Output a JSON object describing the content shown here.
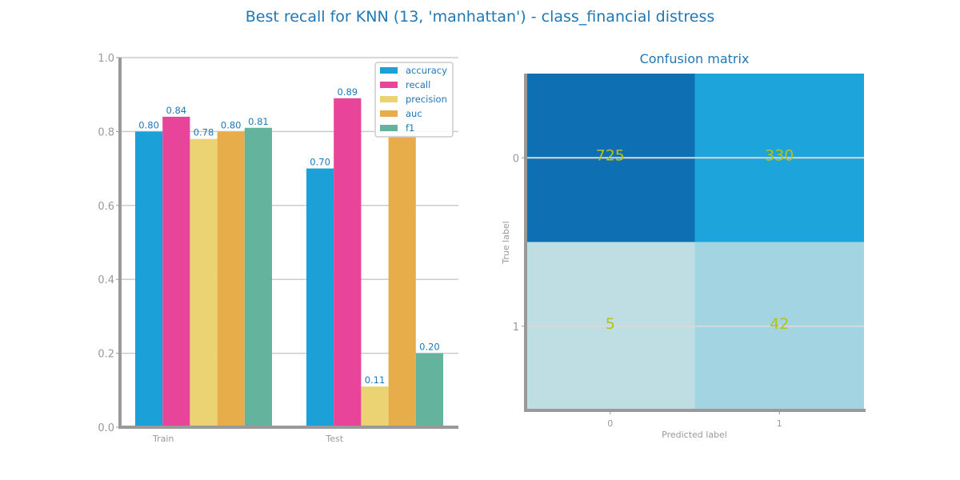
{
  "title": "Best recall for KNN (13, 'manhattan') - class_financial distress",
  "colors": {
    "accuracy": "#1ba1d8",
    "recall": "#e8459a",
    "precision": "#ebd374",
    "auc": "#e8ad4b",
    "f1": "#63b39d",
    "title": "#1f77b4",
    "axis": "#999999",
    "grid": "#cccccc",
    "cm_text": "#b5c21a"
  },
  "chart_data": [
    {
      "type": "bar",
      "categories": [
        "Train",
        "Test"
      ],
      "series": [
        {
          "name": "accuracy",
          "values": [
            0.8,
            0.7
          ],
          "labels": [
            "0.80",
            "0.70"
          ]
        },
        {
          "name": "recall",
          "values": [
            0.84,
            0.89
          ],
          "labels": [
            "0.84",
            "0.89"
          ]
        },
        {
          "name": "precision",
          "values": [
            0.78,
            0.11
          ],
          "labels": [
            "0.78",
            "0.11"
          ]
        },
        {
          "name": "auc",
          "values": [
            0.8,
            0.79
          ],
          "labels": [
            "0.80",
            ""
          ]
        },
        {
          "name": "f1",
          "values": [
            0.81,
            0.2
          ],
          "labels": [
            "0.81",
            "0.20"
          ]
        }
      ],
      "ylim": [
        0,
        1.0
      ],
      "yticks": [
        "0.0",
        "0.2",
        "0.4",
        "0.6",
        "0.8",
        "1.0"
      ],
      "grid": true,
      "legend": "top-right"
    },
    {
      "type": "heatmap",
      "title": "Confusion matrix",
      "xlabel": "Predicted label",
      "ylabel": "True label",
      "x_ticks": [
        "0",
        "1"
      ],
      "y_ticks": [
        "0",
        "1"
      ],
      "matrix": [
        [
          725,
          330
        ],
        [
          5,
          42
        ]
      ],
      "cell_colors": [
        [
          "#0e70b3",
          "#1ca4db"
        ],
        [
          "#bfdee3",
          "#a3d4e1"
        ]
      ]
    }
  ]
}
